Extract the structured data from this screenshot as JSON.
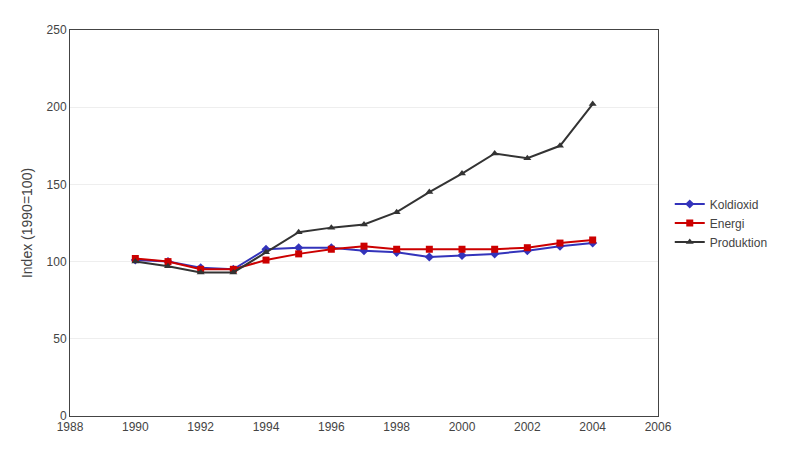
{
  "chart_data": {
    "type": "line",
    "x": [
      1990,
      1991,
      1992,
      1993,
      1994,
      1995,
      1996,
      1997,
      1998,
      1999,
      2000,
      2001,
      2002,
      2003,
      2004
    ],
    "series": [
      {
        "name": "Koldioxid",
        "color": "#3333bb",
        "marker": "diamond",
        "values": [
          101,
          100,
          96,
          95,
          108,
          109,
          109,
          107,
          106,
          103,
          104,
          105,
          107,
          110,
          112
        ]
      },
      {
        "name": "Energi",
        "color": "#cc0000",
        "marker": "square",
        "values": [
          102,
          100,
          95,
          95,
          101,
          105,
          108,
          110,
          108,
          108,
          108,
          108,
          109,
          112,
          114
        ]
      },
      {
        "name": "Produktion",
        "color": "#333333",
        "marker": "triangle-up",
        "values": [
          100,
          97,
          93,
          93,
          106,
          119,
          122,
          124,
          132,
          145,
          157,
          170,
          167,
          175,
          202
        ]
      }
    ],
    "ylabel": "Index (1990=100)",
    "xlim": [
      1988,
      2006
    ],
    "xticks": [
      1988,
      1990,
      1992,
      1994,
      1996,
      1998,
      2000,
      2002,
      2004,
      2006
    ],
    "ylim": [
      0,
      250
    ],
    "yticks": [
      0,
      50,
      100,
      150,
      200,
      250
    ],
    "grid": "y",
    "legend": "right"
  }
}
